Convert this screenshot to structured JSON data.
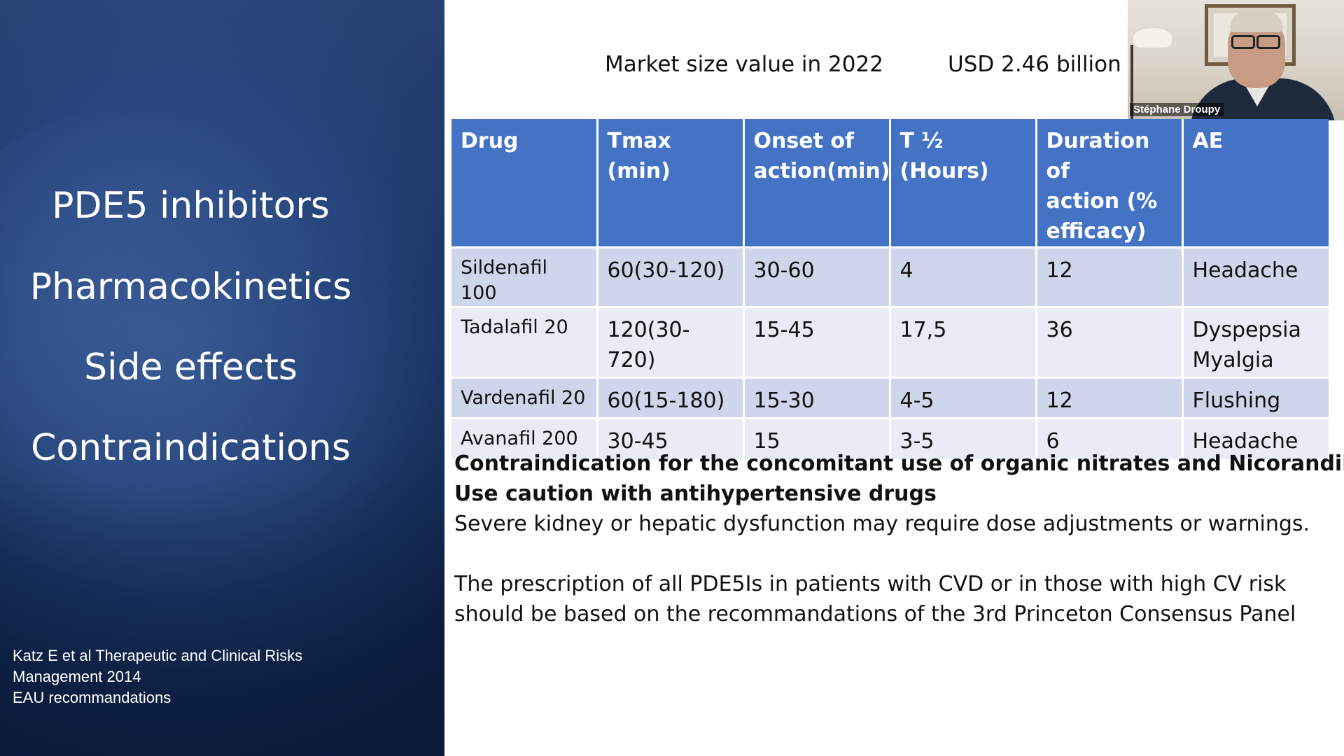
{
  "left_panel": {
    "topics": [
      "PDE5 inhibitors",
      "Pharmacokinetics",
      "Side effects",
      "Contraindications"
    ],
    "references": [
      "Katz  E  et al Therapeutic and Clinical Risks",
      "Management 2014",
      "EAU recommandations"
    ]
  },
  "market": {
    "label": "Market size value in 2022",
    "value": "USD 2.46 billion"
  },
  "video": {
    "participant_name": "Stéphane Droupy"
  },
  "table": {
    "headers": [
      [
        "Drug"
      ],
      [
        "Tmax (min)"
      ],
      [
        "Onset of",
        "action(min)"
      ],
      [
        "T ½",
        "(Hours)"
      ],
      [
        "Duration of",
        "action (%",
        "efficacy)"
      ],
      [
        "AE"
      ]
    ],
    "rows": [
      [
        "Sildenafil 100",
        "60(30-120)",
        "30-60",
        "4",
        "12",
        "Headache"
      ],
      [
        "Tadalafil 20",
        "120(30-720)",
        "15-45",
        "17,5",
        "36",
        "Dyspepsia",
        "Myalgia"
      ],
      [
        "Vardenafil 20",
        "60(15-180)",
        "15-30",
        "4-5",
        "12",
        "Flushing"
      ],
      [
        "Avanafil 200",
        "30-45",
        "15",
        "3-5",
        "6",
        "Headache"
      ]
    ]
  },
  "notes": {
    "bold_line_1": "Contraindication for the concomitant use of organic nitrates and Nicorandil",
    "bold_line_2": "Use caution with antihypertensive drugs",
    "line_3": "Severe kidney or hepatic dysfunction may require dose adjustments or warnings.",
    "line_4": "The prescription of all PDE5Is in patients with CVD or in those with high CV risk",
    "line_5": "should be based on the recommandations of the 3rd Princeton Consensus Panel"
  }
}
